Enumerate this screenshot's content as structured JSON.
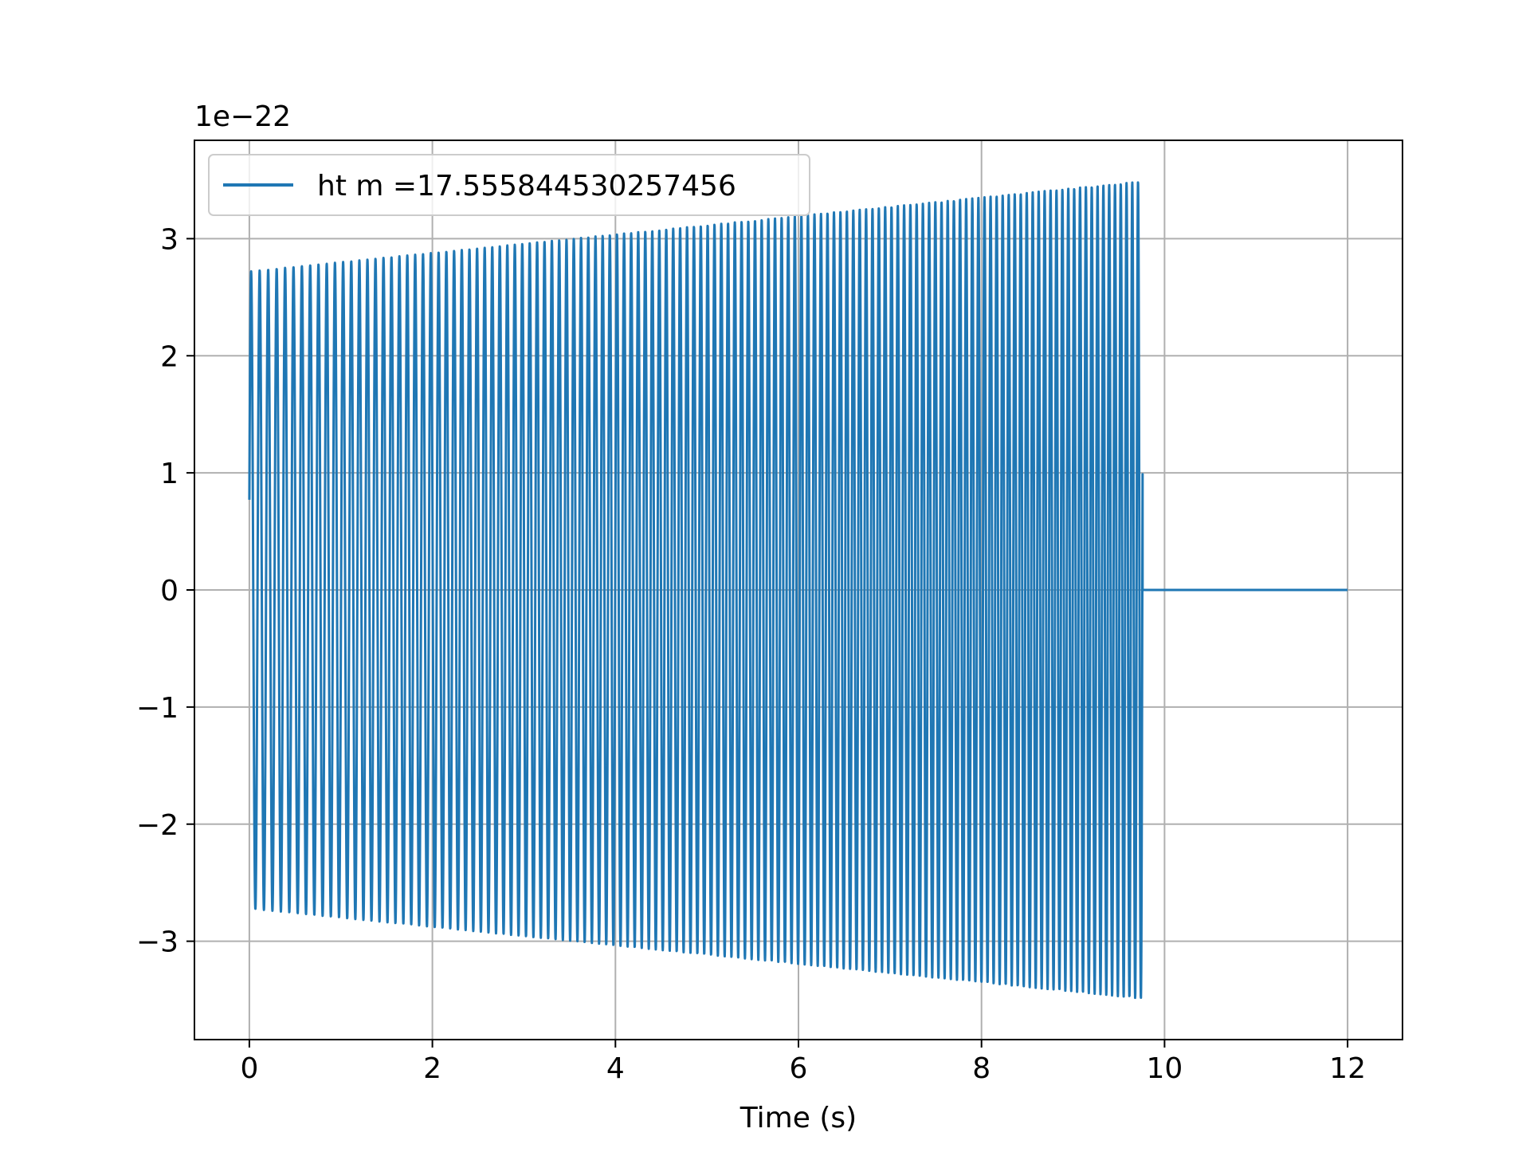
{
  "chart_data": {
    "type": "line",
    "title": "",
    "xlabel": "Time (s)",
    "ylabel": "",
    "offset_label": "1e−22",
    "xlim": [
      -0.6,
      12.6
    ],
    "ylim": [
      -3.84,
      3.84
    ],
    "xticks": [
      0,
      2,
      4,
      6,
      8,
      10,
      12
    ],
    "xtick_labels": [
      "0",
      "2",
      "4",
      "6",
      "8",
      "10",
      "12"
    ],
    "yticks": [
      -3,
      -2,
      -1,
      0,
      1,
      2,
      3
    ],
    "ytick_labels": [
      "−3",
      "−2",
      "−1",
      "0",
      "1",
      "2",
      "3"
    ],
    "grid": true,
    "legend_position": "upper-left",
    "series": [
      {
        "name": "ht m =17.555844530257456",
        "color": "#1f77b4",
        "waveform": {
          "kind": "chirp",
          "t_start": 0.0,
          "t_end": 9.76,
          "t_after_end": 12.0,
          "value_at_start": 0.77,
          "amplitude_start": 2.72,
          "amplitude_end": 3.49,
          "cycles": 130,
          "value_after_end": 0
        }
      }
    ]
  }
}
